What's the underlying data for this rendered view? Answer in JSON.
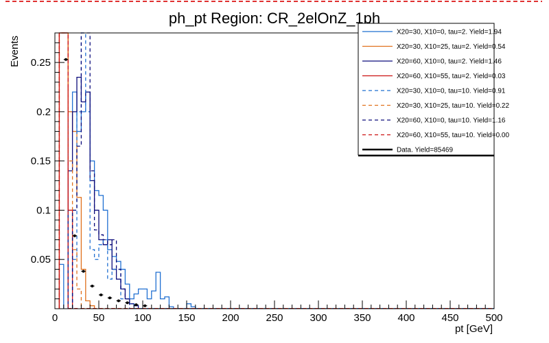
{
  "chart_data": {
    "type": "line",
    "title": "ph_pt Region: CR_2elOnZ_1ph",
    "xlabel": "pt [GeV]",
    "ylabel": "Events",
    "xlim": [
      0,
      500
    ],
    "ylim": [
      0,
      0.28
    ],
    "bin_width": 5,
    "xticks": [
      "0",
      "50",
      "100",
      "150",
      "200",
      "250",
      "300",
      "350",
      "400",
      "450",
      "500"
    ],
    "yticks": [
      "0.05",
      "0.1",
      "0.15",
      "0.2",
      "0.25"
    ],
    "legend_position": "top-right",
    "grid": false,
    "series": [
      {
        "name": "X20=30, X10=0, tau=2. Yield=1.94",
        "color": "#1f6fd1",
        "dash": false,
        "bins": [
          [
            5,
            0.045
          ],
          [
            15,
            0.2
          ],
          [
            20,
            0.22
          ],
          [
            25,
            0.18
          ],
          [
            30,
            0.2
          ],
          [
            35,
            0.22
          ],
          [
            40,
            0.15
          ],
          [
            45,
            0.12
          ],
          [
            50,
            0.115
          ],
          [
            55,
            0.1
          ],
          [
            60,
            0.06
          ],
          [
            65,
            0.053
          ],
          [
            70,
            0.048
          ],
          [
            75,
            0.04
          ],
          [
            80,
            0.025
          ],
          [
            85,
            0.01
          ],
          [
            90,
            0.015
          ],
          [
            95,
            0.02
          ],
          [
            100,
            0.02
          ],
          [
            105,
            0.01
          ],
          [
            110,
            0.018
          ],
          [
            115,
            0.037
          ],
          [
            120,
            0.01
          ],
          [
            125,
            0.012
          ],
          [
            130,
            0.002
          ],
          [
            150,
            0.005
          ],
          [
            155,
            0.002
          ]
        ]
      },
      {
        "name": "X20=30, X10=25, tau=2. Yield=0.54",
        "color": "#e0701c",
        "dash": false,
        "bins": [
          [
            5,
            0.28
          ],
          [
            10,
            0.28
          ],
          [
            15,
            0.2
          ],
          [
            20,
            0.18
          ],
          [
            25,
            0.113
          ],
          [
            30,
            0.04
          ],
          [
            35,
            0.008
          ],
          [
            40,
            0.003
          ]
        ]
      },
      {
        "name": "X20=60, X10=0, tau=2. Yield=1.46",
        "color": "#0a0a7a",
        "dash": false,
        "bins": [
          [
            15,
            0.14
          ],
          [
            20,
            0.2
          ],
          [
            25,
            0.235
          ],
          [
            30,
            0.21
          ],
          [
            35,
            0.22
          ],
          [
            40,
            0.13
          ],
          [
            45,
            0.1
          ],
          [
            50,
            0.07
          ],
          [
            55,
            0.065
          ],
          [
            60,
            0.07
          ],
          [
            65,
            0.04
          ],
          [
            70,
            0.03
          ],
          [
            75,
            0.02
          ],
          [
            80,
            0.01
          ],
          [
            85,
            0.005
          ],
          [
            90,
            0.003
          ]
        ]
      },
      {
        "name": "X20=60, X10=55, tau=2. Yield=0.03",
        "color": "#cc1111",
        "dash": false,
        "bins": [
          [
            5,
            0.28
          ],
          [
            10,
            0.28
          ],
          [
            15,
            0.1
          ]
        ]
      },
      {
        "name": "X20=30, X10=0, tau=10. Yield=0.91",
        "color": "#1f6fd1",
        "dash": true,
        "bins": [
          [
            20,
            0.05
          ],
          [
            25,
            0.2
          ],
          [
            30,
            0.28
          ],
          [
            35,
            0.2
          ],
          [
            40,
            0.06
          ],
          [
            45,
            0.05
          ],
          [
            50,
            0.065
          ],
          [
            55,
            0.07
          ],
          [
            60,
            0.03
          ],
          [
            65,
            0.04
          ],
          [
            70,
            0.04
          ],
          [
            75,
            0.01
          ],
          [
            80,
            0.01
          ],
          [
            85,
            0.005
          ]
        ]
      },
      {
        "name": "X20=30, X10=25, tau=10. Yield=0.22",
        "color": "#e0701c",
        "dash": true,
        "bins": [
          [
            5,
            0.28
          ],
          [
            10,
            0.28
          ],
          [
            15,
            0.15
          ],
          [
            20,
            0.06
          ],
          [
            25,
            0.02
          ]
        ]
      },
      {
        "name": "X20=60, X10=0, tau=10. Yield=1.16",
        "color": "#0a0a7a",
        "dash": true,
        "bins": [
          [
            20,
            0.1
          ],
          [
            25,
            0.165
          ],
          [
            30,
            0.28
          ],
          [
            35,
            0.28
          ],
          [
            40,
            0.14
          ],
          [
            45,
            0.08
          ],
          [
            50,
            0.075
          ],
          [
            55,
            0.07
          ],
          [
            60,
            0.065
          ],
          [
            65,
            0.07
          ],
          [
            70,
            0.04
          ],
          [
            75,
            0.02
          ],
          [
            80,
            0.01
          ]
        ]
      },
      {
        "name": "X20=60, X10=55, tau=10. Yield=0.00",
        "color": "#cc1111",
        "dash": true,
        "bins": [
          [
            5,
            0.28
          ],
          [
            10,
            0.28
          ]
        ]
      },
      {
        "name": "Data. Yield=85469",
        "color": "#000000",
        "dash": false,
        "marker": "points",
        "points": [
          [
            12.5,
            0.253
          ],
          [
            22.5,
            0.074
          ],
          [
            32.5,
            0.038
          ],
          [
            42.5,
            0.023
          ],
          [
            52.5,
            0.014
          ],
          [
            62.5,
            0.011
          ],
          [
            72.5,
            0.008
          ],
          [
            82.5,
            0.006
          ],
          [
            92.5,
            0.004
          ],
          [
            102.5,
            0.003
          ]
        ]
      }
    ]
  }
}
